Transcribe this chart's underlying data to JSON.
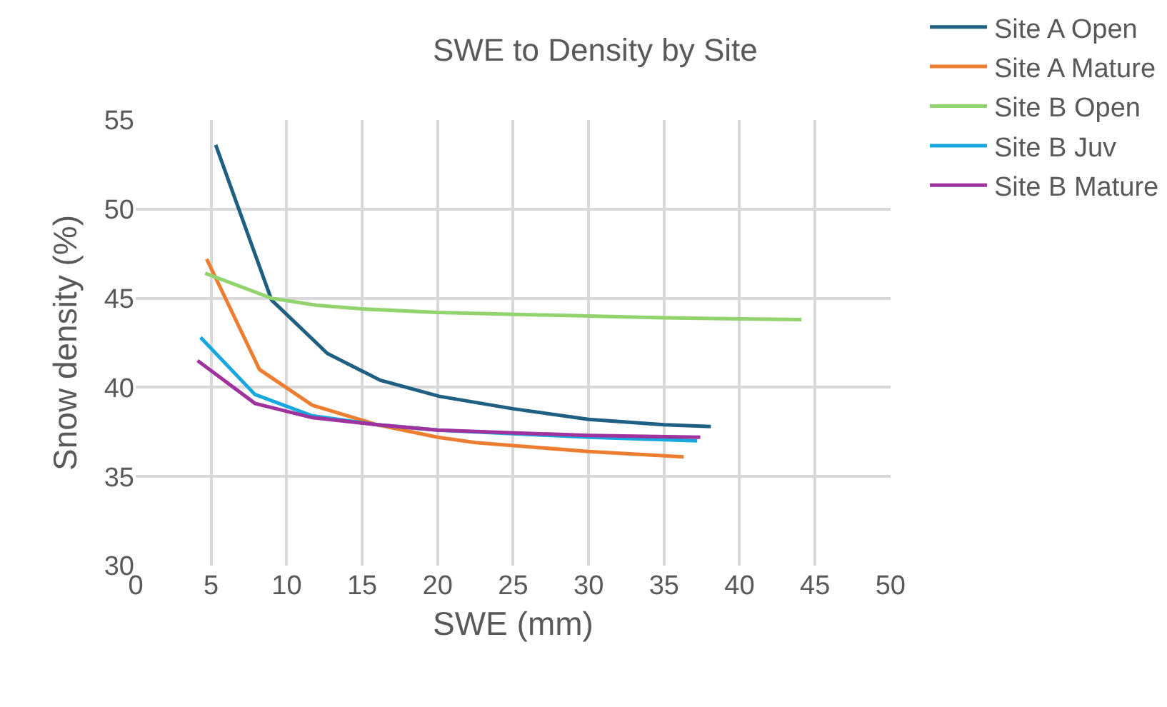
{
  "chart_data": {
    "type": "line",
    "title": "SWE to Density by Site",
    "xlabel": "SWE (mm)",
    "ylabel": "Snow density (%)",
    "xlim": [
      0,
      50
    ],
    "xticks": [
      0,
      5,
      10,
      15,
      20,
      25,
      30,
      35,
      40,
      45,
      50
    ],
    "ylim": [
      30,
      55
    ],
    "yticks": [
      30,
      35,
      40,
      45,
      50,
      55
    ],
    "grid": true,
    "legend": "top right",
    "line_style": "solid",
    "series": [
      {
        "name": "Site A Open",
        "color": "#1f5f82",
        "x": [
          5.3,
          9.0,
          12.7,
          16.2,
          20.1,
          25,
          30,
          35,
          38.1
        ],
        "values": [
          53.6,
          44.9,
          41.9,
          40.4,
          39.5,
          38.8,
          38.2,
          37.9,
          37.8
        ]
      },
      {
        "name": "Site A Mature",
        "color": "#ed7d31",
        "x": [
          4.7,
          8.2,
          11.7,
          16,
          20,
          22.5,
          30,
          36.3
        ],
        "values": [
          47.2,
          41.0,
          39.0,
          37.9,
          37.2,
          36.9,
          36.4,
          36.1
        ]
      },
      {
        "name": "Site B Open",
        "color": "#92d36e",
        "x": [
          4.6,
          9,
          12,
          15,
          20,
          30,
          35,
          44.1
        ],
        "values": [
          46.4,
          45.0,
          44.6,
          44.4,
          44.2,
          44.0,
          43.9,
          43.8
        ]
      },
      {
        "name": "Site B Juv",
        "color": "#18a7de",
        "x": [
          4.3,
          7.9,
          11.7,
          16,
          20,
          30,
          37.2
        ],
        "values": [
          42.8,
          39.6,
          38.4,
          37.9,
          37.6,
          37.2,
          37.0
        ]
      },
      {
        "name": "Site B Mature",
        "color": "#a0329e",
        "x": [
          4.1,
          7.9,
          11.7,
          16,
          20,
          30,
          37.4
        ],
        "values": [
          41.5,
          39.1,
          38.3,
          37.9,
          37.6,
          37.3,
          37.2
        ]
      }
    ]
  }
}
